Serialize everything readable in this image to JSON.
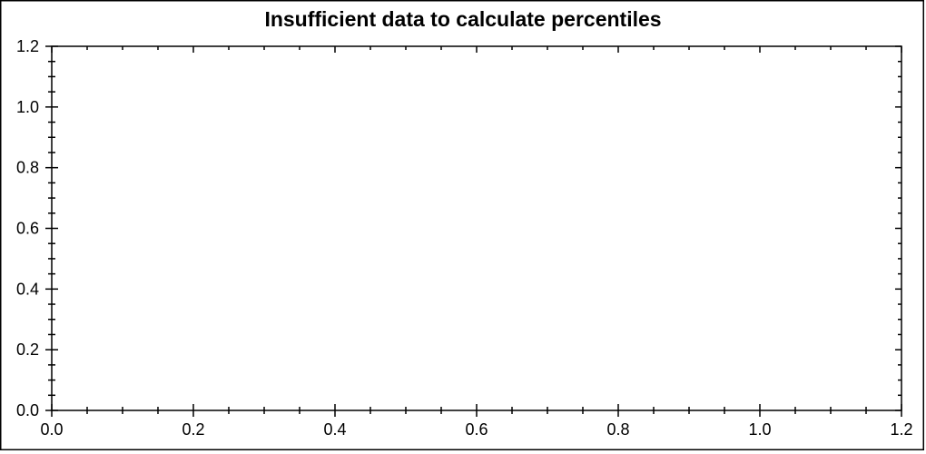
{
  "window": {
    "background": "#ffffff",
    "border_color": "#000000"
  },
  "chart_data": {
    "type": "scatter",
    "title": "Insufficient data to calculate percentiles",
    "series": [],
    "points": [],
    "xlabel": "",
    "ylabel": "",
    "xlim": [
      0.0,
      1.2
    ],
    "ylim": [
      0.0,
      1.2
    ],
    "x_ticks": [
      0.0,
      0.2,
      0.4,
      0.6,
      0.8,
      1.0,
      1.2
    ],
    "x_tick_labels": [
      "0.0",
      "0.2",
      "0.4",
      "0.6",
      "0.8",
      "1.0",
      "1.2"
    ],
    "y_ticks": [
      0.0,
      0.2,
      0.4,
      0.6,
      0.8,
      1.0,
      1.2
    ],
    "y_tick_labels": [
      "0.0",
      "0.2",
      "0.4",
      "0.6",
      "0.8",
      "1.0",
      "1.2"
    ],
    "minor_tick_step": 0.05,
    "grid": false,
    "legend": false,
    "axis_color": "#000000",
    "text_color": "#000000"
  }
}
